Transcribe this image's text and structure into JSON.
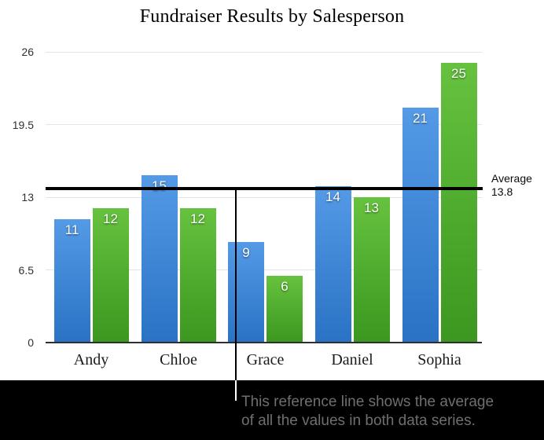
{
  "figure": {
    "title": "Fundraiser Results by Salesperson",
    "reference_label": {
      "line1": "Average",
      "line2": "13.8"
    },
    "annotation": {
      "line1": "This reference line shows the average",
      "line2": "of all the values in both data series."
    }
  },
  "chart_data": {
    "type": "bar",
    "title": "Fundraiser Results by Salesperson",
    "categories": [
      "Andy",
      "Chloe",
      "Grace",
      "Daniel",
      "Sophia"
    ],
    "series": [
      {
        "name": "blue",
        "values": [
          11,
          15,
          9,
          14,
          21
        ],
        "color_top": "#549ae6",
        "color_bottom": "#2a72c4"
      },
      {
        "name": "green",
        "values": [
          12,
          12,
          6,
          13,
          25
        ],
        "color_top": "#66c23e",
        "color_bottom": "#3b971f"
      }
    ],
    "y_ticks": [
      0,
      6.5,
      13,
      19.5,
      26
    ],
    "ylim": [
      0,
      26
    ],
    "grid": true,
    "legend": false,
    "reference_line": {
      "value": 13.8,
      "label": "Average",
      "value_label": "13.8"
    },
    "axis_color": "#2f2f2f",
    "gridline_color": "#e4e4e6"
  }
}
